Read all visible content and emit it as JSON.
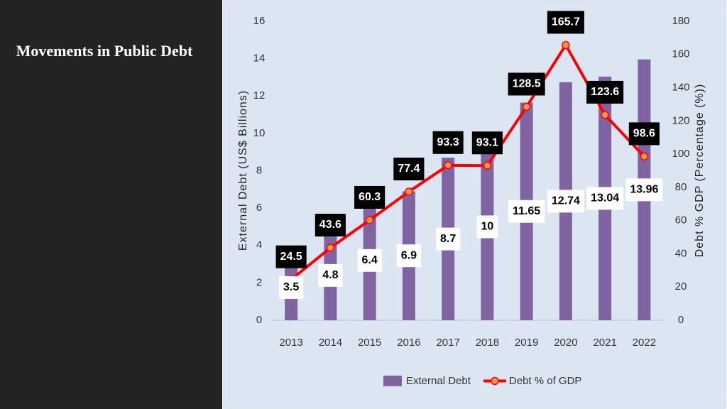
{
  "slide_title": "Movements in Public Debt",
  "chart_data": {
    "type": "combo",
    "categories": [
      "2013",
      "2014",
      "2015",
      "2016",
      "2017",
      "2018",
      "2019",
      "2020",
      "2021",
      "2022"
    ],
    "series": [
      {
        "name": "External Debt",
        "type": "bar",
        "color": "#8064a2",
        "values": [
          3.5,
          4.8,
          6.4,
          6.9,
          8.7,
          10,
          11.65,
          12.74,
          13.04,
          13.96
        ]
      },
      {
        "name": "Debt % of GDP",
        "type": "line",
        "color": "#ff0000",
        "marker_color": "#f79646",
        "axis": "y2",
        "values": [
          24.5,
          43.6,
          60.3,
          77.4,
          93.3,
          93.1,
          128.5,
          165.7,
          123.6,
          98.6
        ]
      }
    ],
    "y_label": "External Debt (US$ Billions)",
    "y2_label": "Debt % GDP  (Percentage (%))",
    "ylim": [
      0,
      16
    ],
    "yticks": [
      0,
      2,
      4,
      6,
      8,
      10,
      12,
      14,
      16
    ],
    "y2lim": [
      0,
      180
    ],
    "y2ticks": [
      0,
      20,
      40,
      60,
      80,
      100,
      120,
      140,
      160,
      180
    ],
    "legend": "bottom"
  }
}
